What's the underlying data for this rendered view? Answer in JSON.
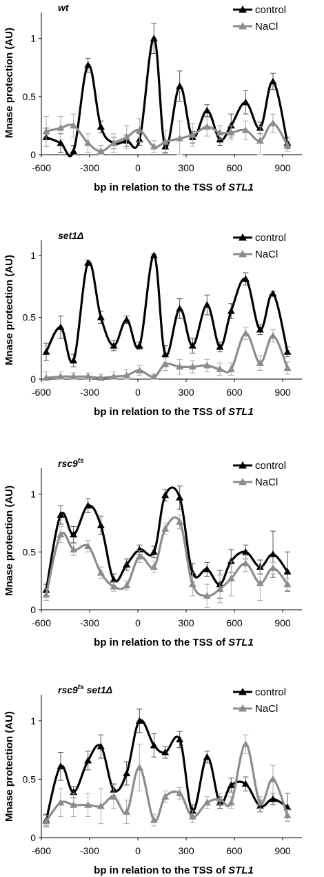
{
  "chart_data": [
    {
      "type": "line",
      "title": "wt",
      "xlabel": "bp in relation to the TSS of",
      "xlabel_italic": "STL1",
      "ylabel": "Mnase protection (AU)",
      "xlim": [
        -600,
        950
      ],
      "ylim": [
        0,
        1.2
      ],
      "xticks": [
        "-600",
        "-300",
        "0",
        "300",
        "600",
        "900"
      ],
      "yticks": [
        "0",
        "0.5",
        "1"
      ],
      "legend_position": "top-right",
      "series": [
        {
          "name": "control",
          "color": "#000000",
          "x": [
            -570,
            -480,
            -400,
            -310,
            -230,
            -150,
            -70,
            10,
            100,
            170,
            260,
            340,
            430,
            510,
            580,
            670,
            760,
            840,
            930
          ],
          "y": [
            0.15,
            0.1,
            0.03,
            0.77,
            0.24,
            0.1,
            0.12,
            0.13,
            1.0,
            0.07,
            0.59,
            0.15,
            0.38,
            0.13,
            0.25,
            0.45,
            0.23,
            0.63,
            0.1
          ],
          "err": [
            0.08,
            0.08,
            0.05,
            0.06,
            0.05,
            0.05,
            0.05,
            0.05,
            0.13,
            0.05,
            0.13,
            0.05,
            0.05,
            0.05,
            0.1,
            0.1,
            0.05,
            0.07,
            0.05
          ]
        },
        {
          "name": "NaCl",
          "color": "#8c8c8c",
          "x": [
            -570,
            -480,
            -400,
            -310,
            -230,
            -150,
            -70,
            10,
            100,
            170,
            260,
            340,
            430,
            510,
            580,
            670,
            760,
            840,
            930
          ],
          "y": [
            0.2,
            0.23,
            0.25,
            0.1,
            0.03,
            0.1,
            0.15,
            0.21,
            0.07,
            0.11,
            0.14,
            0.17,
            0.24,
            0.19,
            0.19,
            0.21,
            0.12,
            0.27,
            0.08
          ],
          "err": [
            0.13,
            0.1,
            0.1,
            0.08,
            0.05,
            0.08,
            0.1,
            0.1,
            0.05,
            0.1,
            0.15,
            0.1,
            0.08,
            0.06,
            0.06,
            0.08,
            0.12,
            0.08,
            0.05
          ]
        }
      ]
    },
    {
      "type": "line",
      "title": "set1Δ",
      "xlabel": "bp in relation to the TSS of",
      "xlabel_italic": "STL1",
      "ylabel": "Mnase protection (AU)",
      "xlim": [
        -600,
        950
      ],
      "ylim": [
        0,
        1.1
      ],
      "xticks": [
        "-600",
        "-300",
        "0",
        "300",
        "600",
        "900"
      ],
      "yticks": [
        "0",
        "0.5",
        "1"
      ],
      "legend_position": "top-right",
      "series": [
        {
          "name": "control",
          "color": "#000000",
          "x": [
            -570,
            -480,
            -400,
            -310,
            -230,
            -150,
            -70,
            10,
            100,
            170,
            260,
            340,
            430,
            510,
            580,
            670,
            760,
            840,
            930
          ],
          "y": [
            0.22,
            0.42,
            0.15,
            0.94,
            0.5,
            0.27,
            0.48,
            0.27,
            1.0,
            0.2,
            0.57,
            0.27,
            0.6,
            0.26,
            0.55,
            0.81,
            0.4,
            0.69,
            0.22
          ],
          "err": [
            0.07,
            0.09,
            0.05,
            0.02,
            0.05,
            0.04,
            0.03,
            0.03,
            0.01,
            0.07,
            0.08,
            0.06,
            0.08,
            0.04,
            0.06,
            0.05,
            0.04,
            0.02,
            0.04
          ]
        },
        {
          "name": "NaCl",
          "color": "#8c8c8c",
          "x": [
            -570,
            -480,
            -400,
            -310,
            -230,
            -150,
            -70,
            10,
            100,
            170,
            260,
            340,
            430,
            510,
            580,
            670,
            760,
            840,
            930
          ],
          "y": [
            0.01,
            0.02,
            0.02,
            0.02,
            0.01,
            0.02,
            0.03,
            0.07,
            0.02,
            0.12,
            0.1,
            0.1,
            0.11,
            0.08,
            0.08,
            0.37,
            0.13,
            0.35,
            0.09
          ],
          "err": [
            0.05,
            0.04,
            0.03,
            0.03,
            0.03,
            0.04,
            0.05,
            0.04,
            0.02,
            0.05,
            0.06,
            0.05,
            0.05,
            0.05,
            0.05,
            0.05,
            0.06,
            0.05,
            0.05
          ]
        }
      ]
    },
    {
      "type": "line",
      "title": "rsc9",
      "title_superscript": "ts",
      "xlabel": "bp in relation to the TSS of",
      "xlabel_italic": "STL1",
      "ylabel": "Mnase protection (AU)",
      "xlim": [
        -600,
        950
      ],
      "ylim": [
        0,
        1.2
      ],
      "xticks": [
        "-600",
        "-300",
        "0",
        "300",
        "600",
        "900"
      ],
      "yticks": [
        "0",
        "0.5",
        "1"
      ],
      "legend_position": "top-right",
      "series": [
        {
          "name": "control",
          "color": "#000000",
          "x": [
            -570,
            -480,
            -400,
            -310,
            -230,
            -150,
            -70,
            10,
            100,
            170,
            260,
            340,
            430,
            510,
            580,
            670,
            760,
            840,
            930
          ],
          "y": [
            0.17,
            0.82,
            0.65,
            0.9,
            0.73,
            0.26,
            0.39,
            0.52,
            0.5,
            0.99,
            0.97,
            0.32,
            0.35,
            0.22,
            0.42,
            0.5,
            0.37,
            0.48,
            0.33
          ],
          "err": [
            0.05,
            0.08,
            0.07,
            0.06,
            0.08,
            0.05,
            0.05,
            0.04,
            0.05,
            0.05,
            0.1,
            0.08,
            0.06,
            0.12,
            0.1,
            0.06,
            0.06,
            0.2,
            0.17
          ]
        },
        {
          "name": "NaCl",
          "color": "#8c8c8c",
          "x": [
            -570,
            -480,
            -400,
            -310,
            -230,
            -150,
            -70,
            10,
            100,
            170,
            260,
            340,
            430,
            510,
            580,
            670,
            760,
            840,
            930
          ],
          "y": [
            0.13,
            0.65,
            0.52,
            0.55,
            0.32,
            0.2,
            0.21,
            0.46,
            0.37,
            0.7,
            0.76,
            0.22,
            0.12,
            0.18,
            0.27,
            0.4,
            0.23,
            0.36,
            0.22
          ],
          "err": [
            0.05,
            0.07,
            0.05,
            0.05,
            0.05,
            0.04,
            0.04,
            0.05,
            0.05,
            0.05,
            0.06,
            0.1,
            0.1,
            0.12,
            0.15,
            0.07,
            0.15,
            0.05,
            0.05
          ]
        }
      ]
    },
    {
      "type": "line",
      "title": "rsc9",
      "title_superscript": "ts",
      "title_suffix": " set1Δ",
      "xlabel": "bp in relation to the TSS of",
      "xlabel_italic": "STL1",
      "ylabel": "Mnase protection (AU)",
      "xlim": [
        -600,
        950
      ],
      "ylim": [
        0,
        1.2
      ],
      "xticks": [
        "-600",
        "-300",
        "0",
        "300",
        "600",
        "900"
      ],
      "yticks": [
        "0",
        "0.5",
        "1"
      ],
      "legend_position": "top-right",
      "series": [
        {
          "name": "control",
          "color": "#000000",
          "x": [
            -570,
            -480,
            -400,
            -310,
            -230,
            -150,
            -70,
            10,
            100,
            170,
            260,
            340,
            430,
            510,
            580,
            670,
            760,
            840,
            930
          ],
          "y": [
            0.15,
            0.61,
            0.39,
            0.66,
            0.78,
            0.41,
            0.55,
            1.0,
            0.79,
            0.73,
            0.84,
            0.23,
            0.69,
            0.3,
            0.45,
            0.46,
            0.27,
            0.33,
            0.26
          ],
          "err": [
            0.05,
            0.12,
            0.05,
            0.08,
            0.1,
            0.05,
            0.1,
            0.1,
            0.1,
            0.05,
            0.07,
            0.05,
            0.05,
            0.05,
            0.06,
            0.06,
            0.05,
            0.05,
            0.12
          ]
        },
        {
          "name": "NaCl",
          "color": "#8c8c8c",
          "x": [
            -570,
            -480,
            -400,
            -310,
            -230,
            -150,
            -70,
            10,
            100,
            170,
            260,
            340,
            430,
            510,
            580,
            670,
            760,
            840,
            930
          ],
          "y": [
            0.14,
            0.3,
            0.28,
            0.28,
            0.27,
            0.35,
            0.22,
            0.6,
            0.15,
            0.35,
            0.38,
            0.18,
            0.3,
            0.33,
            0.3,
            0.8,
            0.3,
            0.5,
            0.19
          ],
          "err": [
            0.05,
            0.12,
            0.1,
            0.1,
            0.15,
            0.1,
            0.1,
            0.2,
            0.05,
            0.05,
            0.05,
            0.05,
            0.05,
            0.05,
            0.05,
            0.08,
            0.05,
            0.12,
            0.05
          ]
        }
      ]
    }
  ]
}
